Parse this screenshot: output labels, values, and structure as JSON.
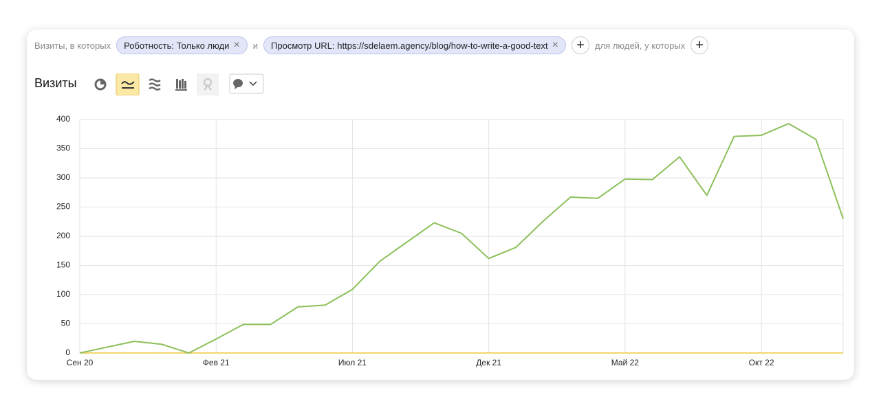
{
  "filters": {
    "prefix": "Визиты, в которых",
    "chips": [
      "Роботность: Только люди",
      "Просмотр URL: https://sdelaem.agency/blog/how-to-write-a-good-text"
    ],
    "conjunction": "и",
    "people": "для людей, у которых"
  },
  "chart_data": {
    "type": "line",
    "title": "Визиты",
    "categories": [
      "Сен 20",
      null,
      null,
      null,
      null,
      "Фев 21",
      null,
      null,
      null,
      null,
      "Июл 21",
      null,
      null,
      null,
      null,
      "Дек 21",
      null,
      null,
      null,
      null,
      "Май 22",
      null,
      null,
      null,
      null,
      "Окт 22",
      null,
      null,
      null
    ],
    "series": [
      {
        "color": "#8cc05a",
        "values": [
          0,
          10,
          20,
          15,
          0,
          24,
          49,
          49,
          79,
          82,
          109,
          157,
          190,
          223,
          205,
          162,
          181,
          226,
          267,
          265,
          298,
          297,
          336,
          270,
          371,
          373,
          393,
          366,
          230
        ]
      },
      {
        "color": "#f2d56b",
        "values": [
          0,
          0,
          0,
          0,
          0,
          0,
          0,
          0,
          0,
          0,
          0,
          0,
          0,
          0,
          0,
          0,
          0,
          0,
          0,
          0,
          0,
          0,
          0,
          0,
          0,
          0,
          0,
          0,
          0
        ]
      }
    ],
    "ylim": [
      0,
      400
    ],
    "yticks": [
      0,
      50,
      100,
      150,
      200,
      250,
      300,
      350,
      400
    ],
    "grid": true
  }
}
